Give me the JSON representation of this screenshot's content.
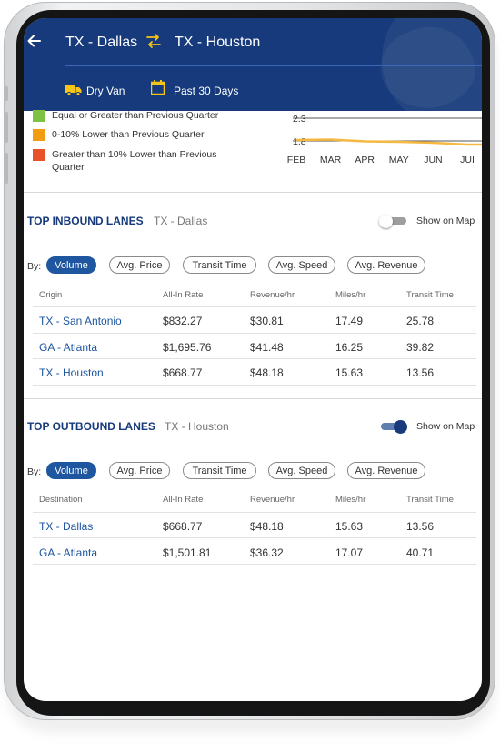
{
  "header": {
    "origin": "TX - Dallas",
    "destination": "TX - Houston",
    "equipment": "Dry Van",
    "period": "Past 30 Days",
    "colors": {
      "background": "#163a7b",
      "icon": "#f5c518"
    }
  },
  "legend": [
    {
      "label": "Equal or Greater than Previous Quarter",
      "color": "#7dc242"
    },
    {
      "label": "0-10% Lower than Previous Quarter",
      "color": "#f39c12"
    },
    {
      "label": "Greater than 10% Lower than Previous Quarter",
      "color": "#e8512a"
    }
  ],
  "chart_data": {
    "type": "line",
    "categories": [
      "FEB",
      "MAR",
      "APR",
      "MAY",
      "JUN",
      "JUI"
    ],
    "series": [
      {
        "values": [
          1.82,
          1.83,
          1.79,
          1.78,
          1.76,
          1.72
        ]
      }
    ],
    "y_ticks": [
      "2.3",
      "1.8"
    ],
    "ylim": [
      1.7,
      2.4
    ],
    "line_color": "#f5b942",
    "grid": true
  },
  "inbound": {
    "title": "TOP INBOUND LANES",
    "city": "TX - Dallas",
    "map_toggle": {
      "label": "Show on Map",
      "state": "off"
    },
    "by_label": "By:",
    "filters": [
      "Volume",
      "Avg. Price",
      "Transit Time",
      "Avg. Speed",
      "Avg. Revenue"
    ],
    "active_filter": "Volume",
    "columns": [
      "Origin",
      "All-In Rate",
      "Revenue/hr",
      "Miles/hr",
      "Transit Time"
    ],
    "rows": [
      [
        "TX - San Antonio",
        "$832.27",
        "$30.81",
        "17.49",
        "25.78"
      ],
      [
        "GA - Atlanta",
        "$1,695.76",
        "$41.48",
        "16.25",
        "39.82"
      ],
      [
        "TX - Houston",
        "$668.77",
        "$48.18",
        "15.63",
        "13.56"
      ]
    ]
  },
  "outbound": {
    "title": "TOP OUTBOUND LANES",
    "city": "TX - Houston",
    "map_toggle": {
      "label": "Show on Map",
      "state": "on"
    },
    "by_label": "By:",
    "filters": [
      "Volume",
      "Avg. Price",
      "Transit Time",
      "Avg. Speed",
      "Avg. Revenue"
    ],
    "active_filter": "Volume",
    "columns": [
      "Destination",
      "All-In Rate",
      "Revenue/hr",
      "Miles/hr",
      "Transit Time"
    ],
    "rows": [
      [
        "TX - Dallas",
        "$668.77",
        "$48.18",
        "15.63",
        "13.56"
      ],
      [
        "GA - Atlanta",
        "$1,501.81",
        "$36.32",
        "17.07",
        "40.71"
      ]
    ]
  }
}
